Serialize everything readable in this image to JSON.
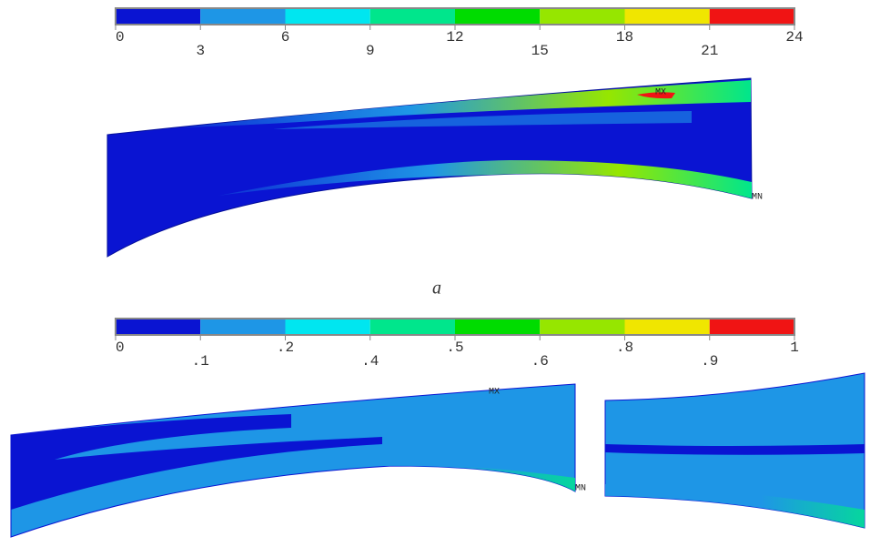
{
  "legend_colors": [
    "#0a14d2",
    "#1e96e6",
    "#00e6f0",
    "#00e68c",
    "#00dc00",
    "#96e600",
    "#f0e600",
    "#f01414"
  ],
  "figure_a": {
    "legend_ticks": [
      "0",
      "3",
      "6",
      "9",
      "12",
      "15",
      "18",
      "21",
      "24"
    ],
    "max_label": "MX",
    "min_label": "MN",
    "caption": "a"
  },
  "figure_b": {
    "legend_ticks": [
      "0",
      ".1",
      ".2",
      ".4",
      ".5",
      ".6",
      ".8",
      ".9",
      "1"
    ],
    "max_label": "MX",
    "min_label": "MN"
  }
}
